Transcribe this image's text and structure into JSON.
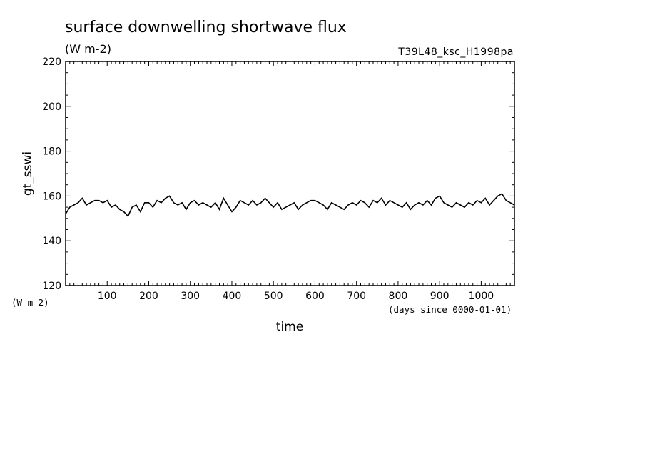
{
  "chart_data": {
    "type": "line",
    "title": "surface downwelling shortwave flux",
    "units": "(W m-2)",
    "run_name": "T39L48_ksc_H1998pa",
    "ylabel": "gt_sswi",
    "ylabel_units": "(W m-2)",
    "xlabel": "time",
    "xlabel_units": "(days since 0000-01-01)",
    "xlim": [
      0,
      1080
    ],
    "ylim": [
      120,
      220
    ],
    "x_ticks": [
      100,
      200,
      300,
      400,
      500,
      600,
      700,
      800,
      900,
      1000
    ],
    "y_ticks": [
      120,
      140,
      160,
      180,
      200,
      220
    ],
    "line_color": "#000000",
    "series": [
      {
        "x": [
          0,
          10,
          20,
          30,
          40,
          50,
          60,
          70,
          80,
          90,
          100,
          110,
          120,
          130,
          140,
          150,
          160,
          170,
          180,
          190,
          200,
          210,
          220,
          230,
          240,
          250,
          260,
          270,
          280,
          290,
          300,
          310,
          320,
          330,
          340,
          350,
          360,
          370,
          380,
          390,
          400,
          410,
          420,
          430,
          440,
          450,
          460,
          470,
          480,
          490,
          500,
          510,
          520,
          530,
          540,
          550,
          560,
          570,
          580,
          590,
          600,
          610,
          620,
          630,
          640,
          650,
          660,
          670,
          680,
          690,
          700,
          710,
          720,
          730,
          740,
          750,
          760,
          770,
          780,
          790,
          800,
          810,
          820,
          830,
          840,
          850,
          860,
          870,
          880,
          890,
          900,
          910,
          920,
          930,
          940,
          950,
          960,
          970,
          980,
          990,
          1000,
          1010,
          1020,
          1030,
          1040,
          1050,
          1060,
          1070,
          1080
        ],
        "values": [
          152,
          155,
          156,
          157,
          159,
          156,
          157,
          158,
          158,
          157,
          158,
          155,
          156,
          154,
          153,
          151,
          155,
          156,
          153,
          157,
          157,
          155,
          158,
          157,
          159,
          160,
          157,
          156,
          157,
          154,
          157,
          158,
          156,
          157,
          156,
          155,
          157,
          154,
          159,
          156,
          153,
          155,
          158,
          157,
          156,
          158,
          156,
          157,
          159,
          157,
          155,
          157,
          154,
          155,
          156,
          157,
          154,
          156,
          157,
          158,
          158,
          157,
          156,
          154,
          157,
          156,
          155,
          154,
          156,
          157,
          156,
          158,
          157,
          155,
          158,
          157,
          159,
          156,
          158,
          157,
          156,
          155,
          157,
          154,
          156,
          157,
          156,
          158,
          156,
          159,
          160,
          157,
          156,
          155,
          157,
          156,
          155,
          157,
          156,
          158,
          157,
          159,
          156,
          158,
          160,
          161,
          158,
          157,
          156
        ]
      }
    ]
  }
}
